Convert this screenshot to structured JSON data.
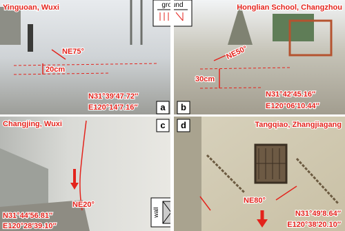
{
  "panels": [
    {
      "id": "a",
      "location": "Yinguoan, Wuxi",
      "azimuth": "NE75°",
      "offset": "20cm",
      "latitude": "N31°39′47.72″",
      "longitude": "E120°14′7.16″"
    },
    {
      "id": "b",
      "location": "Honglian School, Changzhou",
      "azimuth": "NE50°",
      "offset": "30cm",
      "latitude": "N31°42′45.16″",
      "longitude": "E120°06′10.44″"
    },
    {
      "id": "c",
      "location": "Changjing, Wuxi",
      "azimuth": "NE20°",
      "latitude": "N31°44′56.81″",
      "longitude": "E120°28′39.10″"
    },
    {
      "id": "d",
      "location": "Tangqiao, Zhangjiagang",
      "azimuth": "NE80°",
      "latitude": "N31°49′8.64″",
      "longitude": "E120°38′20.10″"
    }
  ],
  "insets": {
    "ground": "ground",
    "wall": "wall"
  }
}
